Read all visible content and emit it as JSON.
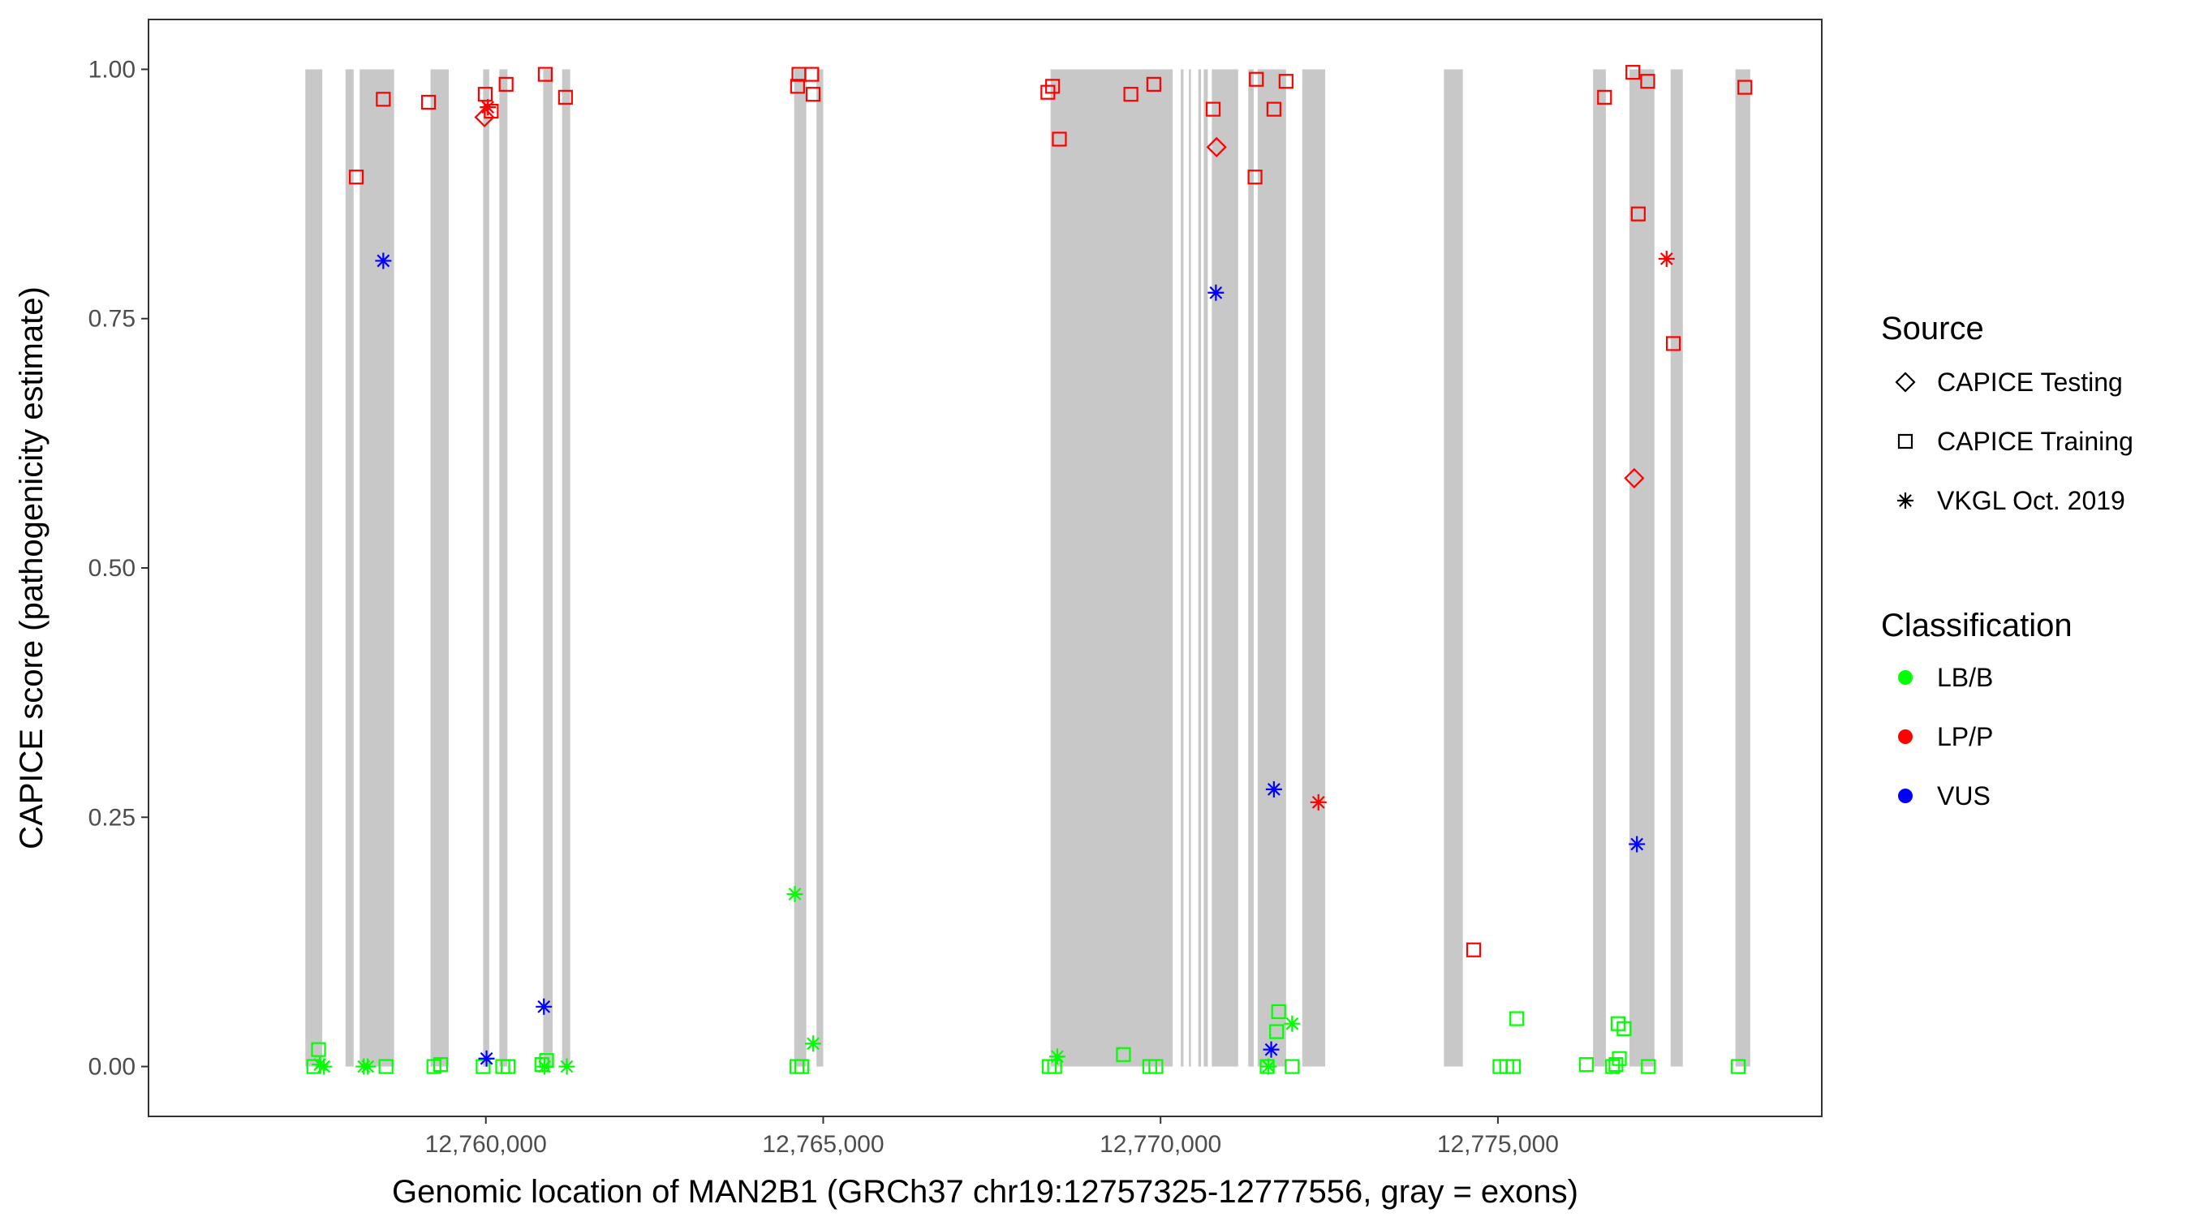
{
  "chart_data": {
    "type": "scatter",
    "xlabel": "Genomic location of MAN2B1 (GRCh37 chr19:12757325-12777556, gray = exons)",
    "ylabel": "CAPICE score (pathogenicity estimate)",
    "xlim": [
      12755000,
      12779800
    ],
    "ylim": [
      -0.05,
      1.05
    ],
    "x_ticks": [
      {
        "value": 12760000,
        "label": "12,760,000"
      },
      {
        "value": 12765000,
        "label": "12,765,000"
      },
      {
        "value": 12770000,
        "label": "12,770,000"
      },
      {
        "value": 12775000,
        "label": "12,775,000"
      }
    ],
    "y_ticks": [
      {
        "value": 0.0,
        "label": "0.00"
      },
      {
        "value": 0.25,
        "label": "0.25"
      },
      {
        "value": 0.5,
        "label": "0.50"
      },
      {
        "value": 0.75,
        "label": "0.75"
      },
      {
        "value": 1.0,
        "label": "1.00"
      }
    ],
    "grid": false,
    "exons": [
      [
        12757325,
        12757575
      ],
      [
        12757920,
        12758040
      ],
      [
        12758130,
        12758640
      ],
      [
        12759180,
        12759450
      ],
      [
        12759960,
        12760050
      ],
      [
        12760200,
        12760320
      ],
      [
        12760850,
        12760990
      ],
      [
        12761130,
        12761250
      ],
      [
        12764570,
        12764750
      ],
      [
        12764900,
        12765000
      ],
      [
        12768370,
        12770100
      ],
      [
        12770100,
        12770180
      ],
      [
        12770300,
        12770340
      ],
      [
        12770420,
        12770450
      ],
      [
        12770560,
        12770600
      ],
      [
        12770640,
        12770700
      ],
      [
        12770760,
        12771150
      ],
      [
        12771300,
        12771380
      ],
      [
        12771440,
        12771860
      ],
      [
        12772100,
        12772440
      ],
      [
        12774200,
        12774480
      ],
      [
        12776410,
        12776600
      ],
      [
        12776950,
        12777320
      ],
      [
        12777560,
        12777740
      ],
      [
        12778520,
        12778740
      ]
    ],
    "legend": {
      "position": "right",
      "source_title": "Source",
      "source_items": [
        {
          "name": "CAPICE Testing",
          "shape": "diamond"
        },
        {
          "name": "CAPICE Training",
          "shape": "square"
        },
        {
          "name": "VKGL Oct. 2019",
          "shape": "asterisk"
        }
      ],
      "class_title": "Classification",
      "class_items": [
        {
          "name": "LB/B",
          "color": "#00ff00"
        },
        {
          "name": "LP/P",
          "color": "#ff0000"
        },
        {
          "name": "VUS",
          "color": "#0000ff"
        }
      ]
    },
    "points": [
      {
        "x": 12758080,
        "y": 0.892,
        "source": "CAPICE Training",
        "class": "LP/P"
      },
      {
        "x": 12758480,
        "y": 0.97,
        "source": "CAPICE Training",
        "class": "LP/P"
      },
      {
        "x": 12759150,
        "y": 0.967,
        "source": "CAPICE Training",
        "class": "LP/P"
      },
      {
        "x": 12759990,
        "y": 0.975,
        "source": "CAPICE Training",
        "class": "LP/P"
      },
      {
        "x": 12760080,
        "y": 0.958,
        "source": "CAPICE Training",
        "class": "LP/P"
      },
      {
        "x": 12760300,
        "y": 0.985,
        "source": "CAPICE Training",
        "class": "LP/P"
      },
      {
        "x": 12760880,
        "y": 0.995,
        "source": "CAPICE Training",
        "class": "LP/P"
      },
      {
        "x": 12761180,
        "y": 0.972,
        "source": "CAPICE Training",
        "class": "LP/P"
      },
      {
        "x": 12764640,
        "y": 0.995,
        "source": "CAPICE Training",
        "class": "LP/P"
      },
      {
        "x": 12764620,
        "y": 0.983,
        "source": "CAPICE Training",
        "class": "LP/P"
      },
      {
        "x": 12764830,
        "y": 0.995,
        "source": "CAPICE Training",
        "class": "LP/P"
      },
      {
        "x": 12764850,
        "y": 0.975,
        "source": "CAPICE Training",
        "class": "LP/P"
      },
      {
        "x": 12768330,
        "y": 0.977,
        "source": "CAPICE Training",
        "class": "LP/P"
      },
      {
        "x": 12768400,
        "y": 0.983,
        "source": "CAPICE Training",
        "class": "LP/P"
      },
      {
        "x": 12768500,
        "y": 0.93,
        "source": "CAPICE Training",
        "class": "LP/P"
      },
      {
        "x": 12769560,
        "y": 0.975,
        "source": "CAPICE Training",
        "class": "LP/P"
      },
      {
        "x": 12769900,
        "y": 0.985,
        "source": "CAPICE Training",
        "class": "LP/P"
      },
      {
        "x": 12770780,
        "y": 0.96,
        "source": "CAPICE Training",
        "class": "LP/P"
      },
      {
        "x": 12771400,
        "y": 0.892,
        "source": "CAPICE Training",
        "class": "LP/P"
      },
      {
        "x": 12771420,
        "y": 0.99,
        "source": "CAPICE Training",
        "class": "LP/P"
      },
      {
        "x": 12771680,
        "y": 0.96,
        "source": "CAPICE Training",
        "class": "LP/P"
      },
      {
        "x": 12771860,
        "y": 0.988,
        "source": "CAPICE Training",
        "class": "LP/P"
      },
      {
        "x": 12774640,
        "y": 0.117,
        "source": "CAPICE Training",
        "class": "LP/P"
      },
      {
        "x": 12776580,
        "y": 0.972,
        "source": "CAPICE Training",
        "class": "LP/P"
      },
      {
        "x": 12777000,
        "y": 0.997,
        "source": "CAPICE Training",
        "class": "LP/P"
      },
      {
        "x": 12777080,
        "y": 0.855,
        "source": "CAPICE Training",
        "class": "LP/P"
      },
      {
        "x": 12777220,
        "y": 0.988,
        "source": "CAPICE Training",
        "class": "LP/P"
      },
      {
        "x": 12777600,
        "y": 0.725,
        "source": "CAPICE Training",
        "class": "LP/P"
      },
      {
        "x": 12778660,
        "y": 0.982,
        "source": "CAPICE Training",
        "class": "LP/P"
      },
      {
        "x": 12757520,
        "y": 0.017,
        "source": "CAPICE Training",
        "class": "LB/B"
      },
      {
        "x": 12757450,
        "y": 0.0,
        "source": "CAPICE Training",
        "class": "LB/B"
      },
      {
        "x": 12758520,
        "y": 0.0,
        "source": "CAPICE Training",
        "class": "LB/B"
      },
      {
        "x": 12759230,
        "y": 0.0,
        "source": "CAPICE Training",
        "class": "LB/B"
      },
      {
        "x": 12759330,
        "y": 0.002,
        "source": "CAPICE Training",
        "class": "LB/B"
      },
      {
        "x": 12759960,
        "y": 0.0,
        "source": "CAPICE Training",
        "class": "LB/B"
      },
      {
        "x": 12760250,
        "y": 0.0,
        "source": "CAPICE Training",
        "class": "LB/B"
      },
      {
        "x": 12760330,
        "y": 0.0,
        "source": "CAPICE Training",
        "class": "LB/B"
      },
      {
        "x": 12760830,
        "y": 0.002,
        "source": "CAPICE Training",
        "class": "LB/B"
      },
      {
        "x": 12760900,
        "y": 0.006,
        "source": "CAPICE Training",
        "class": "LB/B"
      },
      {
        "x": 12764610,
        "y": 0.0,
        "source": "CAPICE Training",
        "class": "LB/B"
      },
      {
        "x": 12764680,
        "y": 0.0,
        "source": "CAPICE Training",
        "class": "LB/B"
      },
      {
        "x": 12768350,
        "y": 0.0,
        "source": "CAPICE Training",
        "class": "LB/B"
      },
      {
        "x": 12768430,
        "y": 0.0,
        "source": "CAPICE Training",
        "class": "LB/B"
      },
      {
        "x": 12769450,
        "y": 0.012,
        "source": "CAPICE Training",
        "class": "LB/B"
      },
      {
        "x": 12769840,
        "y": 0.0,
        "source": "CAPICE Training",
        "class": "LB/B"
      },
      {
        "x": 12769930,
        "y": 0.0,
        "source": "CAPICE Training",
        "class": "LB/B"
      },
      {
        "x": 12771580,
        "y": 0.0,
        "source": "CAPICE Training",
        "class": "LB/B"
      },
      {
        "x": 12771750,
        "y": 0.055,
        "source": "CAPICE Training",
        "class": "LB/B"
      },
      {
        "x": 12771720,
        "y": 0.035,
        "source": "CAPICE Training",
        "class": "LB/B"
      },
      {
        "x": 12771950,
        "y": 0.0,
        "source": "CAPICE Training",
        "class": "LB/B"
      },
      {
        "x": 12775030,
        "y": 0.0,
        "source": "CAPICE Training",
        "class": "LB/B"
      },
      {
        "x": 12775130,
        "y": 0.0,
        "source": "CAPICE Training",
        "class": "LB/B"
      },
      {
        "x": 12775230,
        "y": 0.0,
        "source": "CAPICE Training",
        "class": "LB/B"
      },
      {
        "x": 12775280,
        "y": 0.048,
        "source": "CAPICE Training",
        "class": "LB/B"
      },
      {
        "x": 12776310,
        "y": 0.002,
        "source": "CAPICE Training",
        "class": "LB/B"
      },
      {
        "x": 12776700,
        "y": 0.0,
        "source": "CAPICE Training",
        "class": "LB/B"
      },
      {
        "x": 12776750,
        "y": 0.002,
        "source": "CAPICE Training",
        "class": "LB/B"
      },
      {
        "x": 12776800,
        "y": 0.008,
        "source": "CAPICE Training",
        "class": "LB/B"
      },
      {
        "x": 12777230,
        "y": 0.0,
        "source": "CAPICE Training",
        "class": "LB/B"
      },
      {
        "x": 12776870,
        "y": 0.038,
        "source": "CAPICE Training",
        "class": "LB/B"
      },
      {
        "x": 12776780,
        "y": 0.043,
        "source": "CAPICE Training",
        "class": "LB/B"
      },
      {
        "x": 12778560,
        "y": 0.0,
        "source": "CAPICE Training",
        "class": "LB/B"
      },
      {
        "x": 12759980,
        "y": 0.952,
        "source": "CAPICE Testing",
        "class": "LP/P"
      },
      {
        "x": 12770830,
        "y": 0.922,
        "source": "CAPICE Testing",
        "class": "LP/P"
      },
      {
        "x": 12777020,
        "y": 0.59,
        "source": "CAPICE Testing",
        "class": "LP/P"
      },
      {
        "x": 12760030,
        "y": 0.962,
        "source": "VKGL Oct. 2019",
        "class": "LP/P"
      },
      {
        "x": 12772340,
        "y": 0.265,
        "source": "VKGL Oct. 2019",
        "class": "LP/P"
      },
      {
        "x": 12777500,
        "y": 0.81,
        "source": "VKGL Oct. 2019",
        "class": "LP/P"
      },
      {
        "x": 12758480,
        "y": 0.808,
        "source": "VKGL Oct. 2019",
        "class": "VUS"
      },
      {
        "x": 12770820,
        "y": 0.776,
        "source": "VKGL Oct. 2019",
        "class": "VUS"
      },
      {
        "x": 12760860,
        "y": 0.06,
        "source": "VKGL Oct. 2019",
        "class": "VUS"
      },
      {
        "x": 12760010,
        "y": 0.008,
        "source": "VKGL Oct. 2019",
        "class": "VUS"
      },
      {
        "x": 12771680,
        "y": 0.278,
        "source": "VKGL Oct. 2019",
        "class": "VUS"
      },
      {
        "x": 12771640,
        "y": 0.017,
        "source": "VKGL Oct. 2019",
        "class": "VUS"
      },
      {
        "x": 12777060,
        "y": 0.223,
        "source": "VKGL Oct. 2019",
        "class": "VUS"
      },
      {
        "x": 12757540,
        "y": 0.002,
        "source": "VKGL Oct. 2019",
        "class": "LB/B"
      },
      {
        "x": 12757600,
        "y": 0.0,
        "source": "VKGL Oct. 2019",
        "class": "LB/B"
      },
      {
        "x": 12758190,
        "y": 0.0,
        "source": "VKGL Oct. 2019",
        "class": "LB/B"
      },
      {
        "x": 12758250,
        "y": 0.0,
        "source": "VKGL Oct. 2019",
        "class": "LB/B"
      },
      {
        "x": 12760870,
        "y": 0.0,
        "source": "VKGL Oct. 2019",
        "class": "LB/B"
      },
      {
        "x": 12761200,
        "y": 0.0,
        "source": "VKGL Oct. 2019",
        "class": "LB/B"
      },
      {
        "x": 12764580,
        "y": 0.173,
        "source": "VKGL Oct. 2019",
        "class": "LB/B"
      },
      {
        "x": 12764850,
        "y": 0.023,
        "source": "VKGL Oct. 2019",
        "class": "LB/B"
      },
      {
        "x": 12768470,
        "y": 0.01,
        "source": "VKGL Oct. 2019",
        "class": "LB/B"
      },
      {
        "x": 12771600,
        "y": 0.0,
        "source": "VKGL Oct. 2019",
        "class": "LB/B"
      },
      {
        "x": 12771950,
        "y": 0.043,
        "source": "VKGL Oct. 2019",
        "class": "LB/B"
      }
    ]
  }
}
